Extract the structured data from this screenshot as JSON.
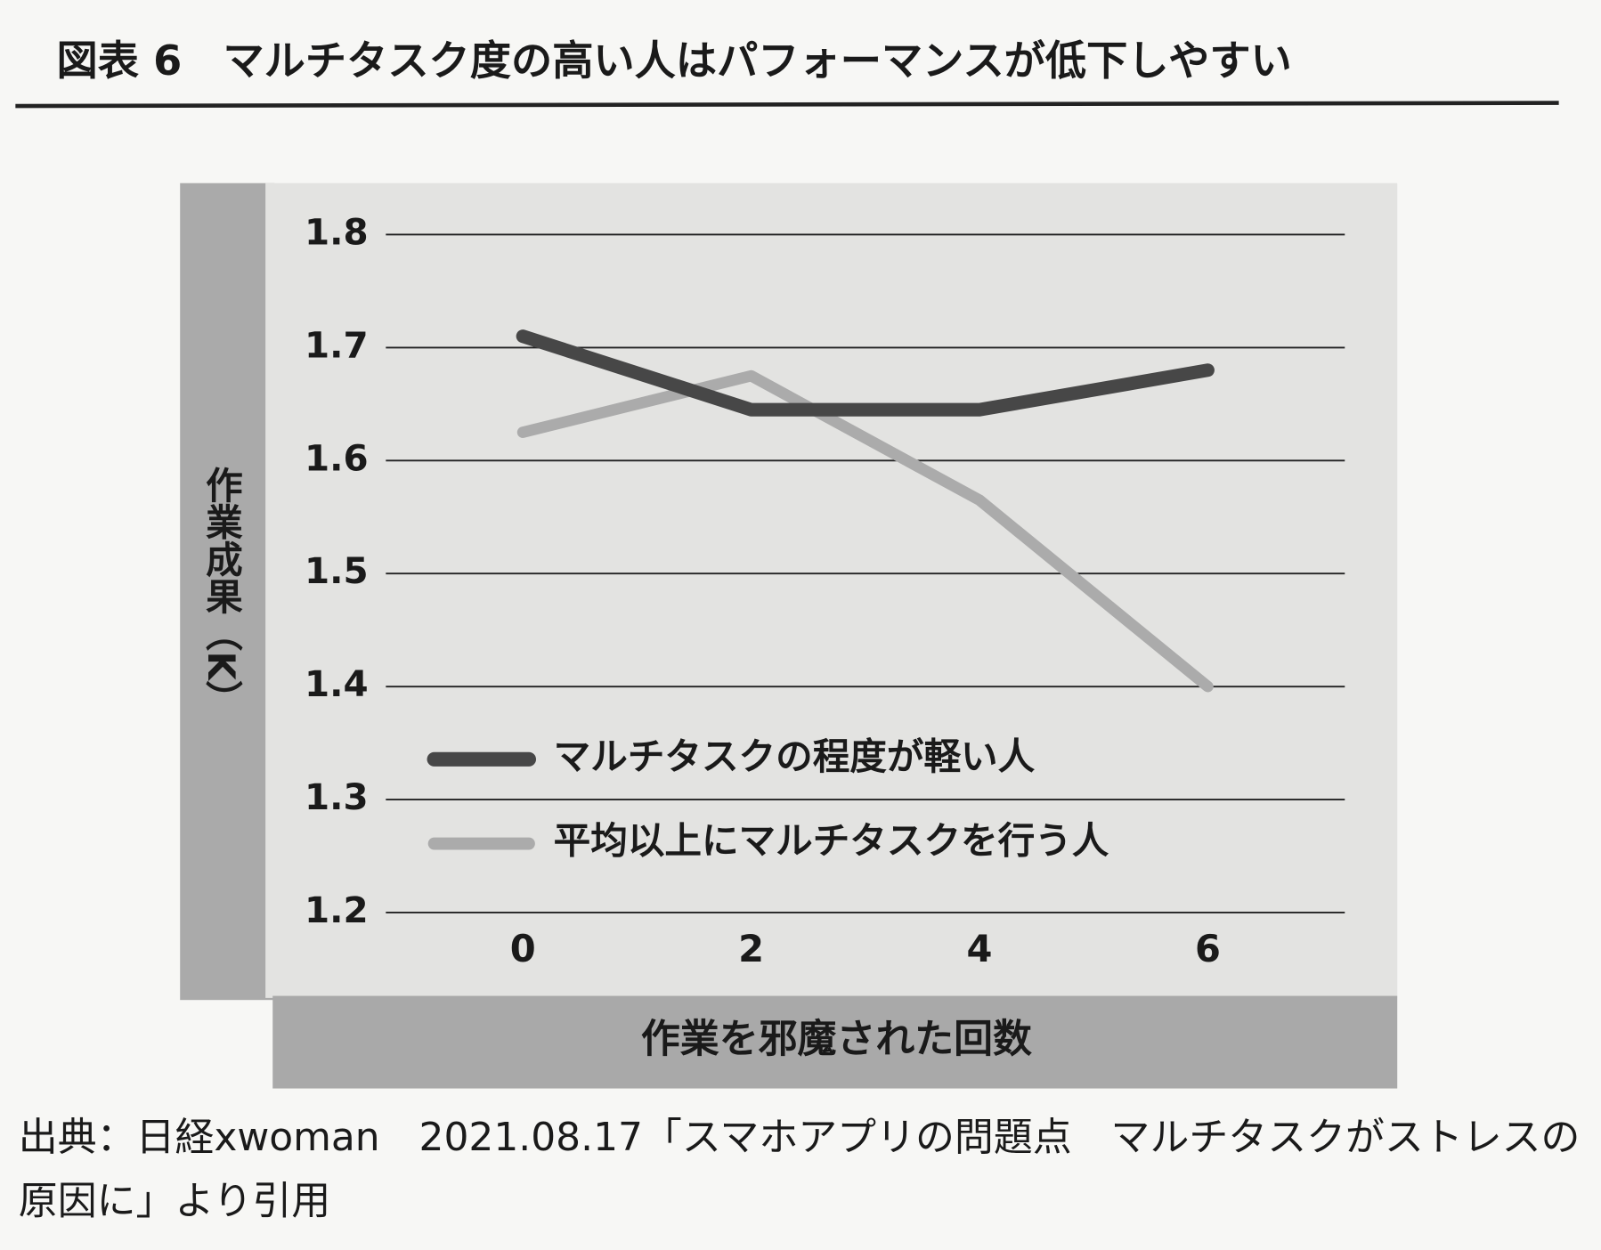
{
  "chart_data": {
    "type": "line",
    "title": "図表 6　マルチタスク度の高い人はパフォーマンスが低下しやすい",
    "y_label": "作業成果（K）",
    "x_label": "作業を邪魔された回数",
    "x": [
      0,
      2,
      4,
      6
    ],
    "xlim": [
      -1.2,
      7.2
    ],
    "xticks": [
      0,
      2,
      4,
      6
    ],
    "ylim": [
      1.2,
      1.8
    ],
    "yticks": [
      1.2,
      1.3,
      1.4,
      1.5,
      1.6,
      1.7,
      1.8
    ],
    "grid": true,
    "legend": "lower left",
    "series": [
      {
        "name": "マルチタスクの程度が軽い人",
        "color": "#474747",
        "values": [
          1.71,
          1.645,
          1.645,
          1.68
        ]
      },
      {
        "name": "平均以上にマルチタスクを行う人",
        "color": "#ababab",
        "values": [
          1.625,
          1.675,
          1.565,
          1.4
        ]
      }
    ],
    "source": "出典：日経xwoman　2021.08.17「スマホアプリの問題点　マルチタスクがストレスの原因に」より引用"
  }
}
